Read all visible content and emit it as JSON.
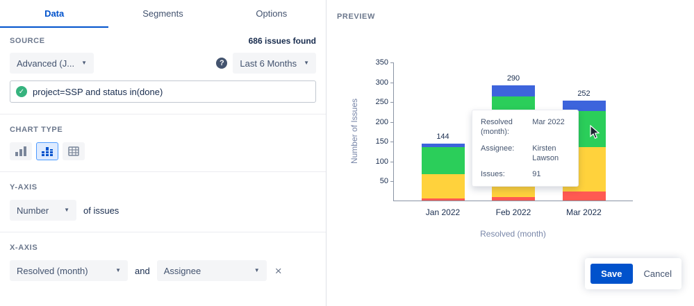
{
  "tabs": [
    {
      "label": "Data"
    },
    {
      "label": "Segments"
    },
    {
      "label": "Options"
    }
  ],
  "active_tab": "Data",
  "source": {
    "label": "SOURCE",
    "count_text": "686 issues found",
    "project_dropdown": "Advanced (J...",
    "time_dropdown": "Last 6 Months",
    "query": "project=SSP and status in(done)"
  },
  "chart_type": {
    "label": "CHART TYPE"
  },
  "y_axis": {
    "label": "Y-AXIS",
    "metric": "Number",
    "suffix": "of issues"
  },
  "x_axis": {
    "label": "X-AXIS",
    "primary": "Resolved (month)",
    "conjunction": "and",
    "secondary": "Assignee"
  },
  "preview": {
    "label": "PREVIEW"
  },
  "tooltip": {
    "rows": [
      {
        "label": "Resolved (month):",
        "value": "Mar 2022"
      },
      {
        "label": "Assignee:",
        "value": "Kirsten Lawson"
      },
      {
        "label": "Issues:",
        "value": "91"
      }
    ]
  },
  "actions": {
    "save": "Save",
    "cancel": "Cancel"
  },
  "icons": {
    "chevron_down": "▼",
    "check": "✓",
    "help": "?",
    "remove": "×"
  },
  "colors": {
    "accent": "#0052CC",
    "success": "#36B37E"
  },
  "chart_data": {
    "type": "bar",
    "stacked": true,
    "title": "",
    "categories": [
      "Jan 2022",
      "Feb 2022",
      "Mar 2022"
    ],
    "series": [
      {
        "name": "red",
        "color": "#FF5A52",
        "values": [
          6,
          8,
          22
        ]
      },
      {
        "name": "yellow",
        "color": "#FFD23C",
        "values": [
          60,
          142,
          113
        ]
      },
      {
        "name": "green",
        "color": "#2BCE5A",
        "values": [
          68,
          112,
          91
        ]
      },
      {
        "name": "blue",
        "color": "#3D64DC",
        "values": [
          10,
          28,
          26
        ]
      }
    ],
    "totals": [
      144,
      290,
      252
    ],
    "xlabel": "Resolved (month)",
    "ylabel": "Number of Issues",
    "ylim": [
      0,
      350
    ],
    "yticks": [
      50,
      100,
      150,
      200,
      250,
      300,
      350
    ],
    "grid": false,
    "legend": false
  }
}
